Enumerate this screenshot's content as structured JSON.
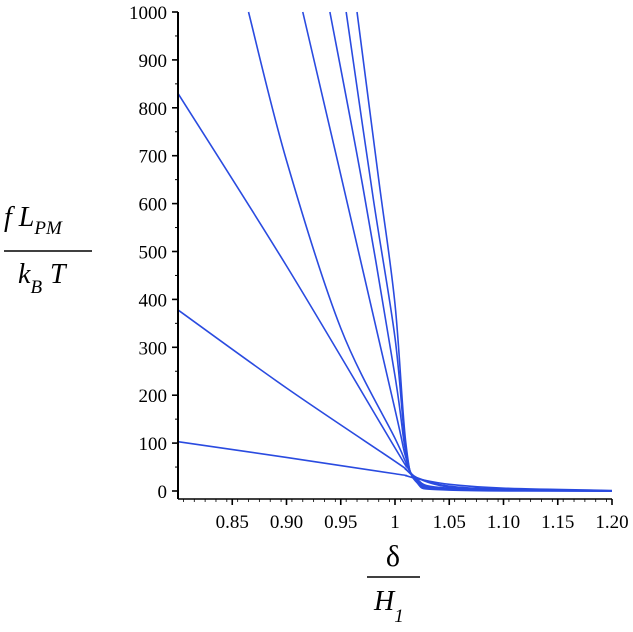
{
  "chart_data": {
    "type": "line",
    "title": "",
    "xlabel": {
      "numerator": "δ",
      "denominator_base": "H",
      "denominator_sub": "1"
    },
    "ylabel": {
      "numerator_base": "f L",
      "numerator_sub": "PM",
      "denominator_base": "k",
      "denominator_sub": "B",
      "denominator_tail": "T"
    },
    "xlim": [
      0.8,
      1.2
    ],
    "ylim": [
      0,
      1000
    ],
    "x_ticks": [
      0.85,
      0.9,
      0.95,
      1.0,
      1.05,
      1.1,
      1.15,
      1.2
    ],
    "x_tick_labels": [
      "0.85",
      "0.90",
      "0.95",
      "1",
      "1.05",
      "1.10",
      "1.15",
      "1.20"
    ],
    "y_ticks": [
      0,
      100,
      200,
      300,
      400,
      500,
      600,
      700,
      800,
      900,
      1000
    ],
    "y_tick_labels": [
      "0",
      "100",
      "200",
      "300",
      "400",
      "500",
      "600",
      "700",
      "800",
      "900",
      "1000"
    ],
    "grid": false,
    "line_color": "#2a4be0",
    "series": [
      {
        "x": [
          0.8,
          0.9,
          1.0,
          1.01,
          1.02,
          1.05,
          1.1,
          1.2
        ],
        "y": [
          103,
          70,
          36,
          32,
          26,
          14,
          6,
          1
        ]
      },
      {
        "x": [
          0.8,
          0.9,
          1.0,
          1.01,
          1.02,
          1.05,
          1.1,
          1.2
        ],
        "y": [
          378,
          215,
          62,
          45,
          28,
          10,
          4,
          0
        ]
      },
      {
        "x": [
          0.8,
          0.9,
          1.0,
          1.01,
          1.02,
          1.05,
          1.1,
          1.2
        ],
        "y": [
          830,
          470,
          90,
          55,
          28,
          8,
          2,
          0
        ]
      },
      {
        "x": [
          0.865,
          0.9,
          0.95,
          1.0,
          1.01,
          1.02,
          1.05,
          1.2
        ],
        "y": [
          1000,
          690,
          340,
          110,
          60,
          25,
          6,
          0
        ]
      },
      {
        "x": [
          0.915,
          0.95,
          1.0,
          1.01,
          1.02,
          1.05,
          1.2
        ],
        "y": [
          1000,
          660,
          170,
          70,
          24,
          5,
          0
        ]
      },
      {
        "x": [
          0.94,
          0.97,
          1.0,
          1.01,
          1.02,
          1.05,
          1.2
        ],
        "y": [
          1000,
          640,
          240,
          80,
          22,
          4,
          0
        ]
      },
      {
        "x": [
          0.955,
          0.98,
          1.0,
          1.01,
          1.02,
          1.05,
          1.2
        ],
        "y": [
          1000,
          610,
          320,
          90,
          20,
          3,
          0
        ]
      },
      {
        "x": [
          0.965,
          0.985,
          1.0,
          1.01,
          1.02,
          1.05,
          1.2
        ],
        "y": [
          1000,
          650,
          390,
          100,
          18,
          2,
          0
        ]
      }
    ]
  }
}
